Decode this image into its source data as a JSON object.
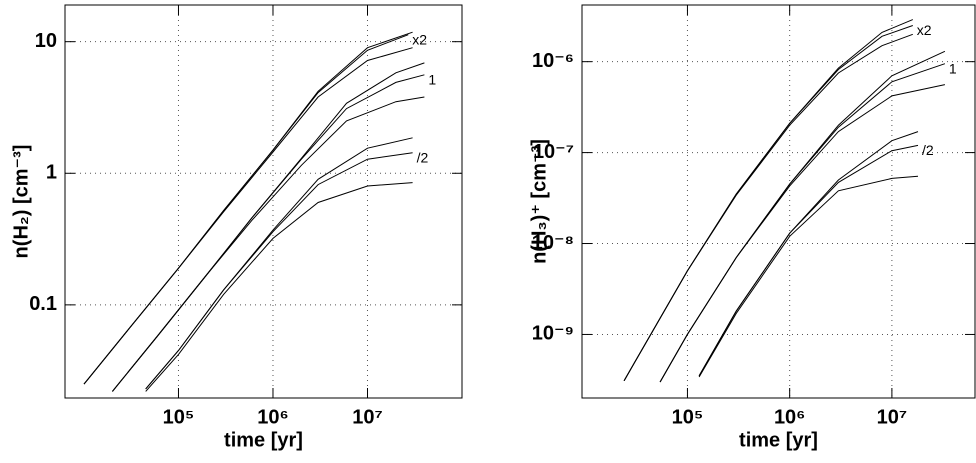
{
  "chart_data": [
    {
      "type": "line",
      "xlabel": "time [yr]",
      "ylabel": "n(H₂) [cm⁻³]",
      "xscale": "log",
      "yscale": "log",
      "grid": true,
      "color": "#000000",
      "xlim": [
        6300,
        100000000
      ],
      "ylim": [
        0.0196,
        19
      ],
      "xticks": [
        {
          "value": 100000,
          "label": "10⁵"
        },
        {
          "value": 1000000,
          "label": "10⁶"
        },
        {
          "value": 10000000,
          "label": "10⁷"
        }
      ],
      "yticks": [
        0.1,
        1,
        10
      ],
      "series": [
        {
          "x": [
            10000,
            30000,
            100000,
            300000,
            1000000,
            3000000,
            10000000,
            30000000
          ],
          "values": [
            0.025,
            0.066,
            0.19,
            0.52,
            1.5,
            4.2,
            9.0,
            11.8
          ]
        },
        {
          "name": "x2",
          "x": [
            10000,
            30000,
            100000,
            300000,
            1000000,
            3000000,
            10000000,
            27000000
          ],
          "values": [
            0.025,
            0.066,
            0.19,
            0.52,
            1.5,
            4.1,
            8.6,
            11.3
          ]
        },
        {
          "x": [
            10000,
            30000,
            100000,
            300000,
            1000000,
            3000000,
            10000000,
            30000000
          ],
          "values": [
            0.025,
            0.066,
            0.19,
            0.51,
            1.45,
            3.8,
            7.2,
            9.0
          ]
        },
        {
          "x": [
            20000,
            60000,
            200000,
            600000,
            2000000,
            6000000,
            20000000,
            40000000
          ],
          "values": [
            0.022,
            0.058,
            0.17,
            0.46,
            1.3,
            3.4,
            5.8,
            6.9
          ]
        },
        {
          "name": "1",
          "x": [
            20000,
            60000,
            200000,
            600000,
            2000000,
            6000000,
            20000000,
            40000000
          ],
          "values": [
            0.022,
            0.058,
            0.17,
            0.46,
            1.28,
            3.1,
            4.9,
            5.6
          ]
        },
        {
          "x": [
            20000,
            60000,
            200000,
            600000,
            2000000,
            6000000,
            20000000,
            40000000
          ],
          "values": [
            0.022,
            0.058,
            0.17,
            0.44,
            1.15,
            2.5,
            3.5,
            3.8
          ]
        },
        {
          "x": [
            45000,
            100000,
            300000,
            1000000,
            3000000,
            10000000,
            30000000
          ],
          "values": [
            0.023,
            0.045,
            0.13,
            0.37,
            0.9,
            1.55,
            1.86
          ]
        },
        {
          "name": "/2",
          "x": [
            45000,
            100000,
            300000,
            1000000,
            3000000,
            10000000,
            30000000
          ],
          "values": [
            0.023,
            0.045,
            0.13,
            0.36,
            0.82,
            1.28,
            1.43
          ]
        },
        {
          "x": [
            45000,
            100000,
            300000,
            1000000,
            3000000,
            10000000,
            30000000
          ],
          "values": [
            0.022,
            0.042,
            0.12,
            0.32,
            0.6,
            0.8,
            0.85
          ]
        }
      ]
    },
    {
      "type": "line",
      "xlabel": "time [yr]",
      "ylabel": "n(H₃)⁺ [cm⁻³]",
      "xscale": "log",
      "yscale": "log",
      "grid": true,
      "color": "#000000",
      "xlim": [
        9300,
        65000000
      ],
      "ylim": [
        2e-10,
        4.2e-06
      ],
      "xticks": [
        {
          "value": 100000,
          "label": "10⁵"
        },
        {
          "value": 1000000,
          "label": "10⁶"
        },
        {
          "value": 10000000,
          "label": "10⁷"
        }
      ],
      "yticks": [
        {
          "value": 1e-09,
          "label": "10⁻⁹"
        },
        {
          "value": 1e-08,
          "label": "10⁻⁸"
        },
        {
          "value": 1e-07,
          "label": "10⁻⁷"
        },
        {
          "value": 1e-06,
          "label": "10⁻⁶"
        }
      ],
      "series": [
        {
          "x": [
            24000,
            50000,
            100000,
            300000,
            1000000,
            3000000,
            8000000,
            16000000
          ],
          "values": [
            3.1e-10,
            1.3e-09,
            5e-09,
            3.5e-08,
            2.1e-07,
            8.5e-07,
            2.1e-06,
            2.9e-06
          ]
        },
        {
          "name": "x2",
          "x": [
            24000,
            50000,
            100000,
            300000,
            1000000,
            3000000,
            8000000,
            16000000
          ],
          "values": [
            3.1e-10,
            1.3e-09,
            5e-09,
            3.5e-08,
            2.1e-07,
            8.2e-07,
            1.9e-06,
            2.5e-06
          ]
        },
        {
          "x": [
            24000,
            50000,
            100000,
            300000,
            1000000,
            3000000,
            8000000,
            16000000
          ],
          "values": [
            3.1e-10,
            1.3e-09,
            5e-09,
            3.4e-08,
            2e-07,
            7.5e-07,
            1.5e-06,
            2e-06
          ]
        },
        {
          "x": [
            54000,
            100000,
            300000,
            1000000,
            3000000,
            10000000,
            33000000
          ],
          "values": [
            3e-10,
            1e-09,
            7e-09,
            4.5e-08,
            2e-07,
            7e-07,
            1.3e-06
          ]
        },
        {
          "name": "1",
          "x": [
            54000,
            100000,
            300000,
            1000000,
            3000000,
            10000000,
            33000000
          ],
          "values": [
            3e-10,
            1e-09,
            7e-09,
            4.5e-08,
            1.9e-07,
            6e-07,
            9.5e-07
          ]
        },
        {
          "x": [
            54000,
            100000,
            300000,
            1000000,
            3000000,
            10000000,
            33000000
          ],
          "values": [
            3e-10,
            1e-09,
            7e-09,
            4.3e-08,
            1.7e-07,
            4.2e-07,
            5.6e-07
          ]
        },
        {
          "x": [
            130000,
            300000,
            1000000,
            3000000,
            10000000,
            18000000
          ],
          "values": [
            3.5e-10,
            1.8e-09,
            1.3e-08,
            5e-08,
            1.35e-07,
            1.7e-07
          ]
        },
        {
          "name": "/2",
          "x": [
            130000,
            300000,
            1000000,
            3000000,
            10000000,
            18000000
          ],
          "values": [
            3.5e-10,
            1.8e-09,
            1.3e-08,
            4.7e-08,
            1.05e-07,
            1.2e-07
          ]
        },
        {
          "x": [
            130000,
            300000,
            1000000,
            3000000,
            10000000,
            18000000
          ],
          "values": [
            3.4e-10,
            1.7e-09,
            1.2e-08,
            3.8e-08,
            5.2e-08,
            5.5e-08
          ]
        }
      ]
    }
  ]
}
